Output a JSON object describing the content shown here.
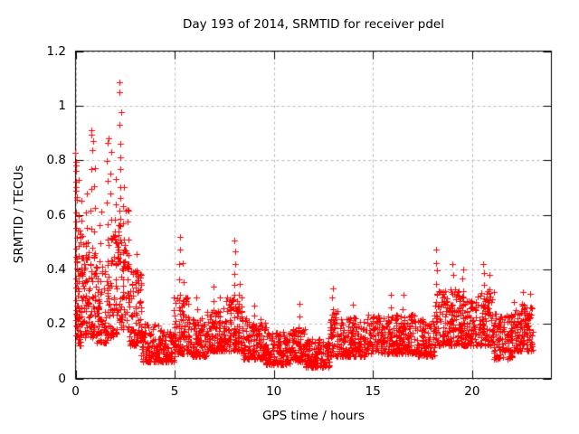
{
  "page": {
    "background_color": "#ffffff",
    "text_color": "#000000"
  },
  "chart_data": {
    "type": "scatter",
    "title": "Day 193 of 2014, SRMTID for receiver pdel",
    "xlabel": "GPS time / hours",
    "ylabel": "SRMTID / TECUs",
    "series_name": "SRMTID",
    "xlim": [
      0,
      24
    ],
    "ylim": [
      0,
      1.2
    ],
    "xticks": [
      0,
      5,
      10,
      15,
      20
    ],
    "yticks": [
      0,
      0.2,
      0.4,
      0.6,
      0.8,
      1,
      1.2
    ],
    "x_tick_labels": [
      "0",
      "5",
      "10",
      "15",
      "20"
    ],
    "y_tick_labels": [
      "0",
      "0.2",
      "0.4",
      "0.6",
      "0.8",
      "1",
      "1.2"
    ],
    "grid": true,
    "grid_style": "dashed",
    "grid_color": "#b9b9b9",
    "axis_color": "#000000",
    "background_color": "#ffffff",
    "legend": "none",
    "marker": {
      "shape": "plus",
      "color": "#ff0000",
      "size": 7
    },
    "data_x_end": 23.1,
    "band_segments_comment": "dense noise band: [x_start_hours, x_end_hours, n_points, y_min_TECU, y_max_TECU]",
    "band_segments": [
      [
        0.0,
        0.35,
        55,
        0.12,
        0.55
      ],
      [
        0.35,
        1.0,
        80,
        0.15,
        0.5
      ],
      [
        1.0,
        1.6,
        70,
        0.13,
        0.42
      ],
      [
        1.6,
        2.1,
        60,
        0.15,
        0.55
      ],
      [
        2.1,
        2.7,
        70,
        0.18,
        0.62
      ],
      [
        2.7,
        3.3,
        70,
        0.12,
        0.4
      ],
      [
        3.3,
        4.2,
        100,
        0.06,
        0.2
      ],
      [
        4.2,
        5.0,
        90,
        0.06,
        0.18
      ],
      [
        5.0,
        5.7,
        80,
        0.09,
        0.3
      ],
      [
        5.7,
        6.6,
        100,
        0.08,
        0.22
      ],
      [
        6.6,
        7.6,
        110,
        0.1,
        0.26
      ],
      [
        7.6,
        8.4,
        90,
        0.1,
        0.3
      ],
      [
        8.4,
        9.6,
        130,
        0.07,
        0.22
      ],
      [
        9.6,
        10.8,
        130,
        0.05,
        0.17
      ],
      [
        10.8,
        11.6,
        90,
        0.06,
        0.2
      ],
      [
        11.6,
        12.8,
        130,
        0.04,
        0.15
      ],
      [
        12.8,
        13.3,
        55,
        0.08,
        0.25
      ],
      [
        13.3,
        14.6,
        140,
        0.08,
        0.22
      ],
      [
        14.6,
        16.2,
        170,
        0.09,
        0.24
      ],
      [
        16.2,
        17.2,
        110,
        0.09,
        0.24
      ],
      [
        17.2,
        18.1,
        95,
        0.08,
        0.22
      ],
      [
        18.1,
        19.4,
        140,
        0.12,
        0.33
      ],
      [
        19.4,
        20.4,
        110,
        0.12,
        0.3
      ],
      [
        20.4,
        21.1,
        80,
        0.12,
        0.32
      ],
      [
        21.1,
        22.1,
        105,
        0.07,
        0.24
      ],
      [
        22.1,
        23.1,
        115,
        0.1,
        0.28
      ]
    ],
    "spike_columns_comment": "vertical streaks of points: [x_hours, y_low, y_high, n_points]",
    "spike_columns": [
      [
        0.03,
        0.15,
        0.83,
        20
      ],
      [
        0.12,
        0.25,
        0.72,
        9
      ],
      [
        0.3,
        0.3,
        0.65,
        6
      ],
      [
        0.55,
        0.3,
        0.68,
        7
      ],
      [
        0.8,
        0.35,
        0.9,
        9
      ],
      [
        0.95,
        0.3,
        0.78,
        7
      ],
      [
        1.25,
        0.3,
        0.62,
        6
      ],
      [
        1.62,
        0.35,
        0.87,
        8
      ],
      [
        1.78,
        0.35,
        0.83,
        7
      ],
      [
        2.0,
        0.35,
        0.72,
        6
      ],
      [
        2.25,
        0.45,
        0.92,
        10
      ],
      [
        2.45,
        0.3,
        0.7,
        7
      ],
      [
        2.62,
        0.28,
        0.58,
        5
      ],
      [
        3.05,
        0.2,
        0.45,
        5
      ],
      [
        3.3,
        0.15,
        0.35,
        4
      ],
      [
        4.95,
        0.12,
        0.3,
        5
      ],
      [
        5.25,
        0.15,
        0.52,
        8
      ],
      [
        5.45,
        0.15,
        0.42,
        5
      ],
      [
        6.1,
        0.15,
        0.3,
        4
      ],
      [
        7.0,
        0.15,
        0.33,
        5
      ],
      [
        7.3,
        0.15,
        0.3,
        4
      ],
      [
        8.03,
        0.18,
        0.5,
        9
      ],
      [
        8.25,
        0.15,
        0.35,
        5
      ],
      [
        9.0,
        0.12,
        0.27,
        4
      ],
      [
        11.3,
        0.12,
        0.28,
        4
      ],
      [
        12.95,
        0.12,
        0.33,
        7
      ],
      [
        14.0,
        0.12,
        0.27,
        4
      ],
      [
        15.9,
        0.14,
        0.3,
        5
      ],
      [
        16.5,
        0.14,
        0.3,
        4
      ],
      [
        18.2,
        0.2,
        0.47,
        8
      ],
      [
        19.0,
        0.18,
        0.42,
        6
      ],
      [
        19.55,
        0.18,
        0.4,
        6
      ],
      [
        20.6,
        0.18,
        0.42,
        7
      ],
      [
        20.85,
        0.18,
        0.38,
        5
      ],
      [
        22.6,
        0.15,
        0.32,
        5
      ],
      [
        22.9,
        0.15,
        0.3,
        5
      ]
    ],
    "outlier_points_comment": "individually visible extreme points [x_hours, y_TECU]",
    "outlier_points": [
      [
        2.2,
        1.085
      ],
      [
        2.23,
        1.05
      ],
      [
        2.3,
        0.975
      ],
      [
        0.82,
        0.895
      ],
      [
        0.88,
        0.87
      ],
      [
        1.66,
        0.88
      ],
      [
        0.02,
        0.78
      ],
      [
        0.02,
        0.76
      ],
      [
        0.04,
        0.7
      ]
    ]
  }
}
